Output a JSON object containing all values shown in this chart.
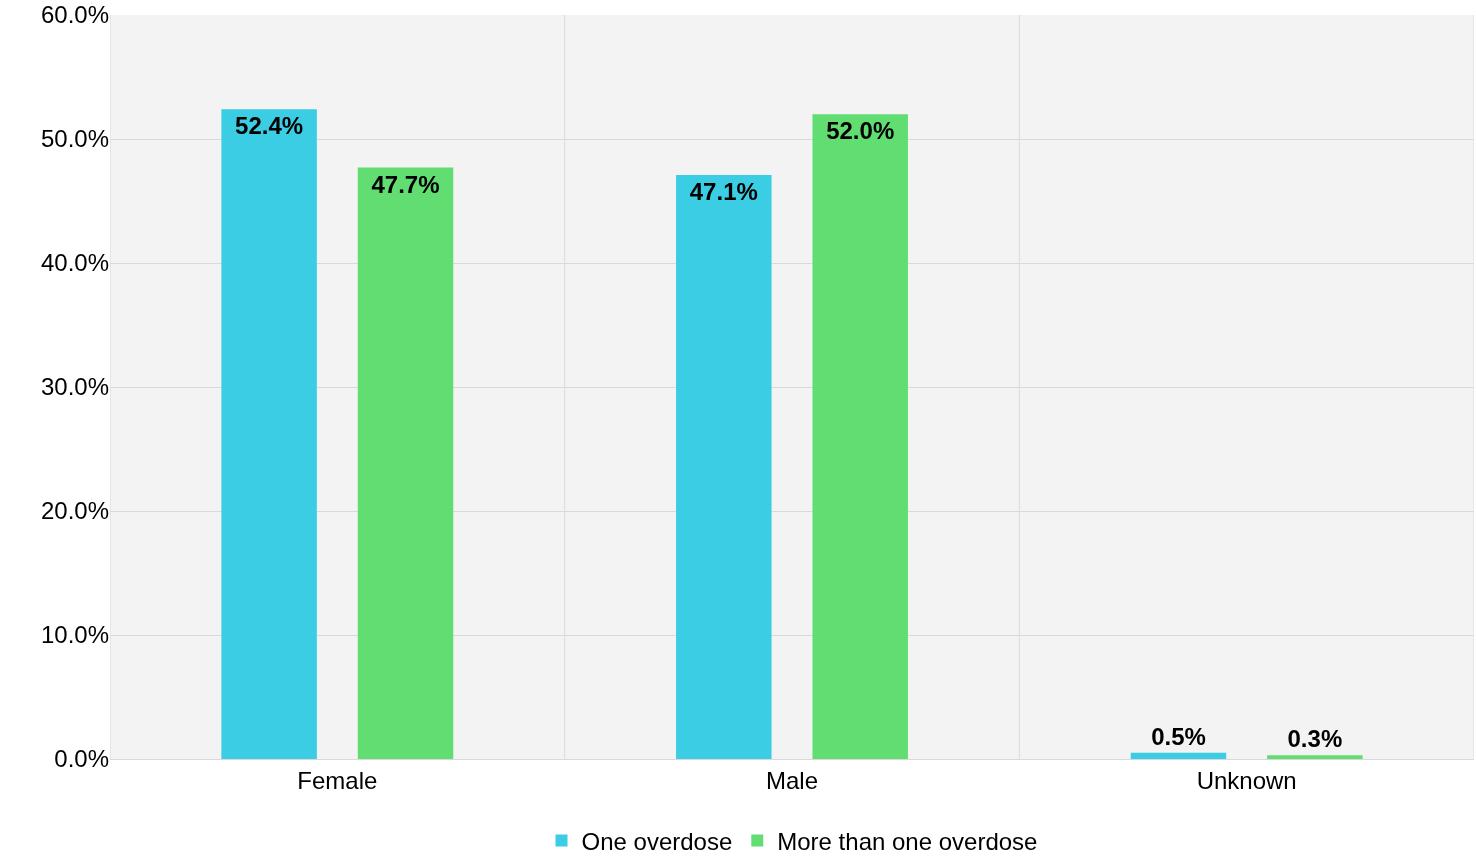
{
  "chart_data": {
    "type": "bar",
    "categories": [
      "Female",
      "Male",
      "Unknown"
    ],
    "series": [
      {
        "name": "One overdose",
        "color": "#3bcde4",
        "values": [
          52.4,
          47.1,
          0.5
        ],
        "value_labels": [
          "52.4%",
          "47.1%",
          "0.5%"
        ]
      },
      {
        "name": "More than one overdose",
        "color": "#62dd72",
        "values": [
          47.7,
          52.0,
          0.3
        ],
        "value_labels": [
          "47.7%",
          "52.0%",
          "0.3%"
        ]
      }
    ],
    "ylim": [
      0,
      60
    ],
    "yticks": [
      {
        "value": 0,
        "label": "0.0%"
      },
      {
        "value": 10,
        "label": "10.0%"
      },
      {
        "value": 20,
        "label": "20.0%"
      },
      {
        "value": 30,
        "label": "30.0%"
      },
      {
        "value": 40,
        "label": "40.0%"
      },
      {
        "value": 50,
        "label": "50.0%"
      },
      {
        "value": 60,
        "label": "60.0%"
      }
    ],
    "grid": true,
    "legend": "bottom"
  }
}
